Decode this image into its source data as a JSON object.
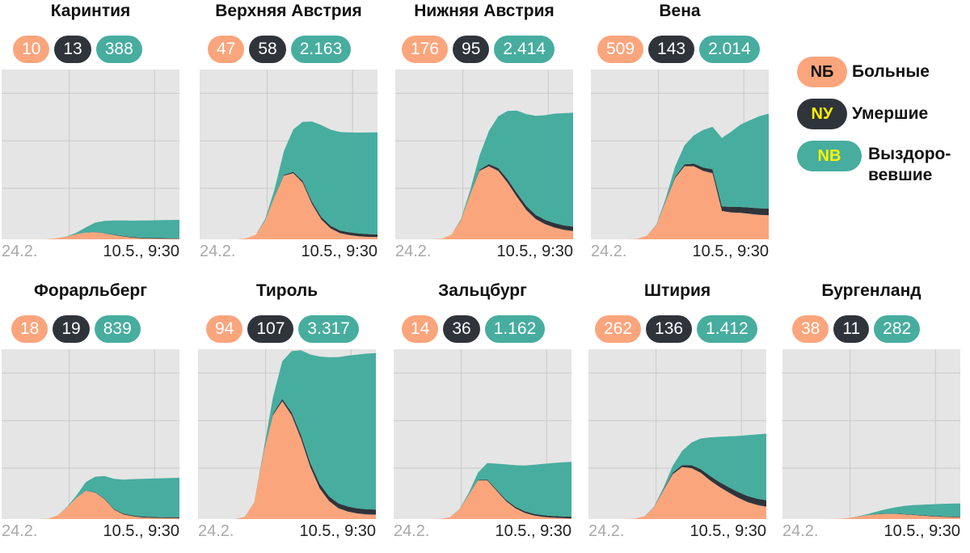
{
  "legend": {
    "sick": {
      "abbr": "NБ",
      "label": "Больные",
      "color": "#fba57d"
    },
    "dead": {
      "abbr": "NУ",
      "label": "Умершие",
      "color": "#2f343b"
    },
    "recovered": {
      "abbr": "NB",
      "label1": "Выздоро-",
      "label2": "вевшие",
      "color": "#47ad9f"
    }
  },
  "x_axis": {
    "start": "24.2.",
    "end": "10.5., 9:30"
  },
  "colors": {
    "sick": "#fba57d",
    "dead": "#2f343b",
    "recovered": "#47ad9f",
    "plot_bg": "#e5e5e5",
    "grid": "#c9c9c9"
  },
  "panels": [
    {
      "title": "Каринтия",
      "sick": "10",
      "dead": "13",
      "recovered": "388"
    },
    {
      "title": "Верхняя Австрия",
      "sick": "47",
      "dead": "58",
      "recovered": "2.163"
    },
    {
      "title": "Нижняя Австрия",
      "sick": "176",
      "dead": "95",
      "recovered": "2.414"
    },
    {
      "title": "Вена",
      "sick": "509",
      "dead": "143",
      "recovered": "2.014"
    },
    {
      "title": "Форарльберг",
      "sick": "18",
      "dead": "19",
      "recovered": "839"
    },
    {
      "title": "Тироль",
      "sick": "94",
      "dead": "107",
      "recovered": "3.317"
    },
    {
      "title": "Зальцбург",
      "sick": "14",
      "dead": "36",
      "recovered": "1.162"
    },
    {
      "title": "Штирия",
      "sick": "262",
      "dead": "136",
      "recovered": "1.412"
    },
    {
      "title": "Бургенланд",
      "sick": "38",
      "dead": "11",
      "recovered": "282"
    }
  ],
  "chart_data": {
    "type": "area",
    "stacked": true,
    "series_order": [
      "sick",
      "dead",
      "recovered"
    ],
    "ylim": [
      0,
      3600
    ],
    "x_start": "2020-02-24",
    "x_end": "2020-05-10",
    "panels": [
      {
        "name": "Каринтия",
        "sick": [
          0,
          0,
          0,
          0,
          0,
          5,
          25,
          60,
          110,
          140,
          150,
          125,
          90,
          60,
          35,
          22,
          15,
          12,
          10,
          10
        ],
        "dead": [
          0,
          0,
          0,
          0,
          0,
          0,
          0,
          0,
          1,
          2,
          4,
          6,
          8,
          10,
          11,
          12,
          12,
          13,
          13,
          13
        ],
        "recovered": [
          0,
          0,
          0,
          0,
          0,
          0,
          0,
          5,
          30,
          110,
          200,
          260,
          300,
          330,
          350,
          365,
          375,
          382,
          386,
          388
        ]
      },
      {
        "name": "Верхняя Австрия",
        "sick": [
          0,
          0,
          0,
          0,
          0,
          20,
          100,
          400,
          900,
          1350,
          1400,
          1200,
          750,
          420,
          230,
          130,
          90,
          65,
          52,
          47
        ],
        "dead": [
          0,
          0,
          0,
          0,
          0,
          0,
          0,
          2,
          8,
          18,
          30,
          40,
          48,
          52,
          55,
          57,
          58,
          58,
          58,
          58
        ],
        "recovered": [
          0,
          0,
          0,
          0,
          0,
          0,
          0,
          30,
          150,
          500,
          900,
          1250,
          1700,
          1950,
          2040,
          2090,
          2120,
          2140,
          2155,
          2163
        ]
      },
      {
        "name": "Нижняя Австрия",
        "sick": [
          0,
          0,
          0,
          0,
          0,
          15,
          100,
          400,
          950,
          1450,
          1550,
          1450,
          1200,
          900,
          620,
          430,
          320,
          250,
          200,
          176
        ],
        "dead": [
          0,
          0,
          0,
          0,
          0,
          0,
          0,
          2,
          10,
          25,
          45,
          60,
          72,
          80,
          86,
          90,
          92,
          94,
          95,
          95
        ],
        "recovered": [
          0,
          0,
          0,
          0,
          0,
          0,
          0,
          20,
          80,
          300,
          700,
          1100,
          1450,
          1750,
          1950,
          2100,
          2220,
          2320,
          2380,
          2414
        ]
      },
      {
        "name": "Вена",
        "sick": [
          0,
          0,
          0,
          0,
          0,
          10,
          80,
          300,
          800,
          1300,
          1550,
          1550,
          1450,
          1400,
          600,
          570,
          560,
          540,
          520,
          509
        ],
        "dead": [
          0,
          0,
          0,
          0,
          0,
          0,
          0,
          2,
          10,
          25,
          40,
          55,
          70,
          85,
          100,
          115,
          125,
          133,
          139,
          143
        ],
        "recovered": [
          0,
          0,
          0,
          0,
          0,
          0,
          0,
          10,
          60,
          220,
          400,
          600,
          800,
          900,
          1450,
          1600,
          1750,
          1850,
          1950,
          2014
        ]
      },
      {
        "name": "Форарльберг",
        "sick": [
          0,
          0,
          0,
          0,
          0,
          10,
          80,
          250,
          450,
          600,
          560,
          420,
          200,
          100,
          60,
          35,
          25,
          20,
          18,
          18
        ],
        "dead": [
          0,
          0,
          0,
          0,
          0,
          0,
          0,
          1,
          3,
          6,
          9,
          12,
          14,
          16,
          17,
          18,
          19,
          19,
          19,
          19
        ],
        "recovered": [
          0,
          0,
          0,
          0,
          0,
          0,
          0,
          10,
          50,
          180,
          330,
          480,
          640,
          720,
          770,
          800,
          815,
          825,
          832,
          839
        ]
      },
      {
        "name": "Тироль",
        "sick": [
          0,
          0,
          0,
          0,
          0,
          50,
          350,
          1400,
          2200,
          2500,
          2200,
          1700,
          1100,
          650,
          380,
          230,
          160,
          120,
          100,
          94
        ],
        "dead": [
          0,
          0,
          0,
          0,
          0,
          0,
          2,
          10,
          25,
          45,
          62,
          78,
          88,
          95,
          100,
          103,
          105,
          106,
          107,
          107
        ],
        "recovered": [
          0,
          0,
          0,
          0,
          0,
          0,
          0,
          50,
          350,
          800,
          1300,
          1800,
          2300,
          2700,
          2950,
          3100,
          3200,
          3260,
          3300,
          3317
        ]
      },
      {
        "name": "Зальцбург",
        "sick": [
          0,
          0,
          0,
          0,
          0,
          5,
          40,
          200,
          500,
          820,
          820,
          600,
          380,
          230,
          130,
          75,
          45,
          30,
          20,
          14
        ],
        "dead": [
          0,
          0,
          0,
          0,
          0,
          0,
          0,
          1,
          4,
          10,
          18,
          24,
          29,
          32,
          34,
          35,
          36,
          36,
          36,
          36
        ],
        "recovered": [
          0,
          0,
          0,
          0,
          0,
          0,
          0,
          5,
          40,
          150,
          350,
          550,
          750,
          880,
          970,
          1040,
          1090,
          1120,
          1145,
          1162
        ]
      },
      {
        "name": "Штирия",
        "sick": [
          0,
          0,
          0,
          0,
          0,
          10,
          60,
          250,
          600,
          950,
          1100,
          1080,
          980,
          820,
          680,
          560,
          450,
          360,
          300,
          262
        ],
        "dead": [
          0,
          0,
          0,
          0,
          0,
          0,
          0,
          3,
          12,
          28,
          45,
          62,
          78,
          92,
          104,
          114,
          122,
          129,
          133,
          136
        ],
        "recovered": [
          0,
          0,
          0,
          0,
          0,
          0,
          0,
          10,
          50,
          150,
          300,
          480,
          650,
          820,
          960,
          1080,
          1190,
          1290,
          1360,
          1412
        ]
      },
      {
        "name": "Бургенланд",
        "sick": [
          0,
          0,
          0,
          0,
          0,
          0,
          5,
          20,
          50,
          80,
          100,
          110,
          110,
          100,
          85,
          70,
          58,
          48,
          42,
          38
        ],
        "dead": [
          0,
          0,
          0,
          0,
          0,
          0,
          0,
          0,
          1,
          2,
          4,
          6,
          7,
          8,
          9,
          10,
          10,
          11,
          11,
          11
        ],
        "recovered": [
          0,
          0,
          0,
          0,
          0,
          0,
          0,
          0,
          5,
          20,
          50,
          90,
          130,
          170,
          200,
          225,
          245,
          262,
          274,
          282
        ]
      }
    ]
  }
}
